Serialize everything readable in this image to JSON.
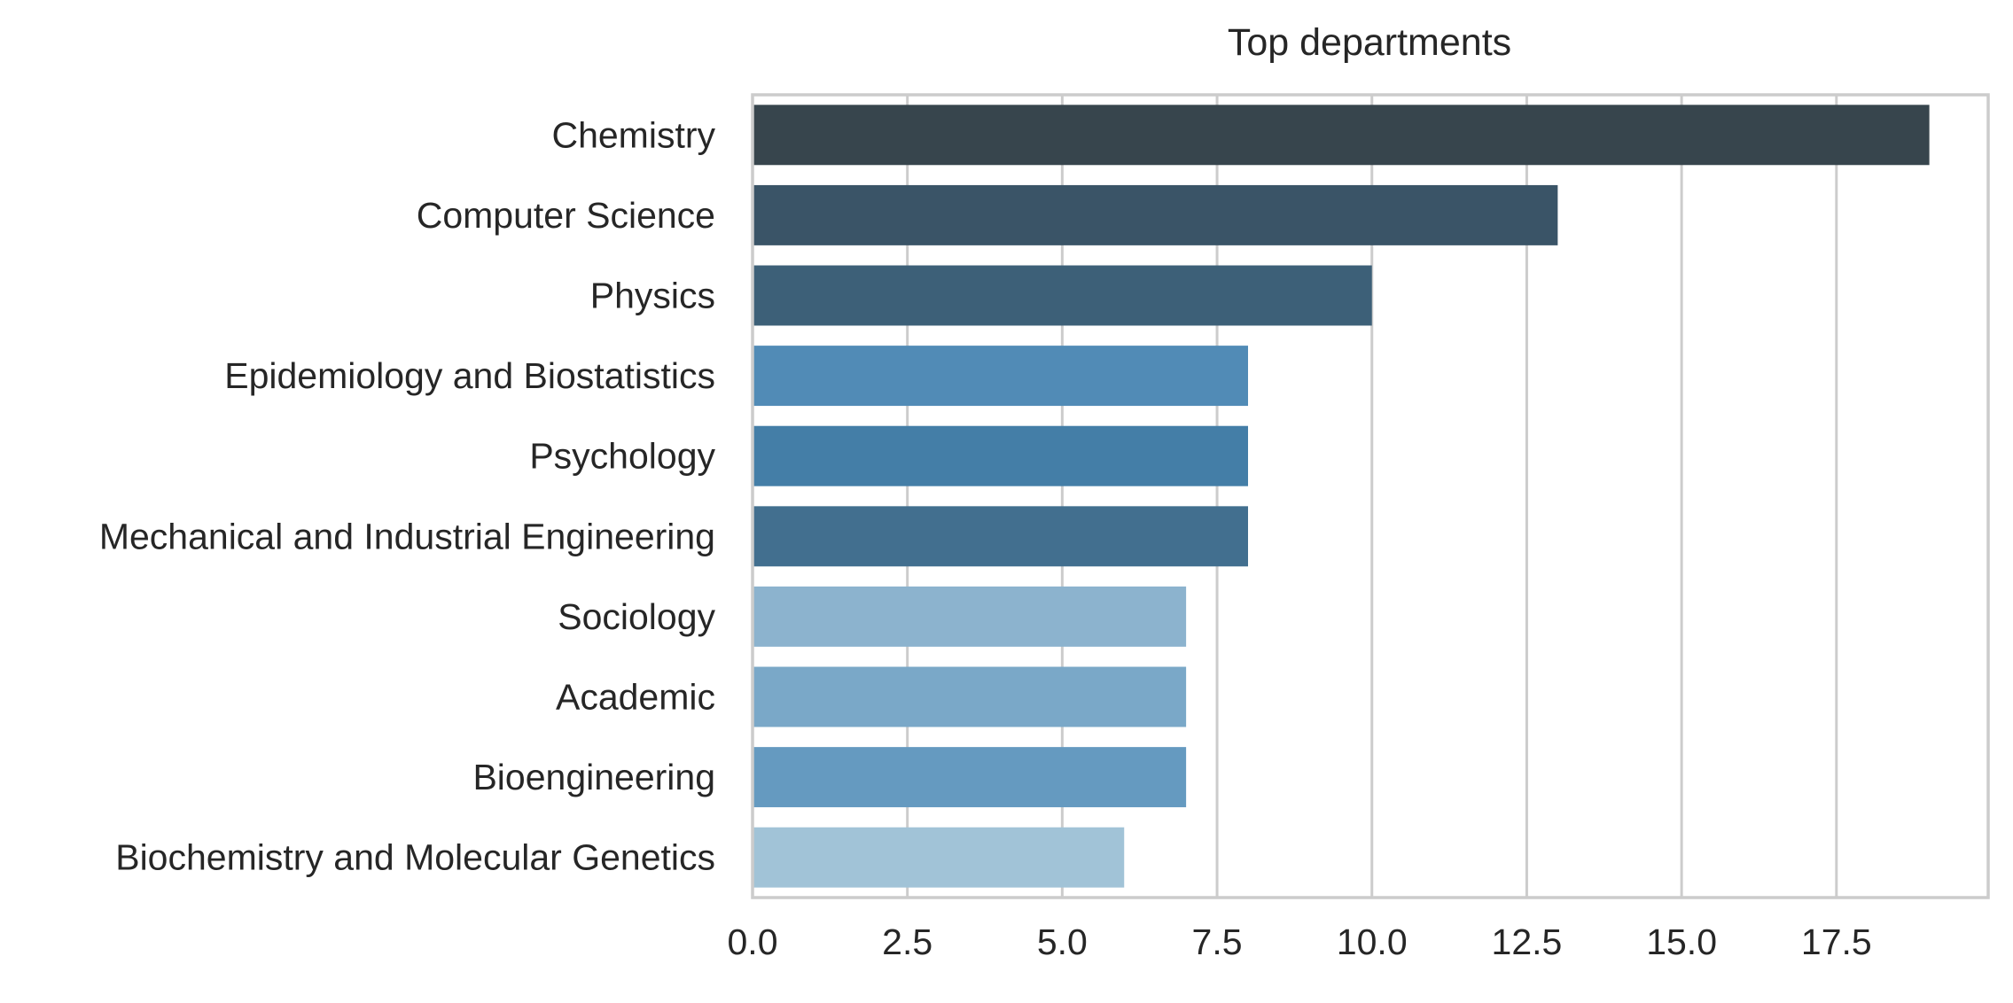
{
  "chart_data": {
    "type": "bar",
    "orientation": "horizontal",
    "title": "Top departments",
    "xlabel": "",
    "ylabel": "",
    "categories": [
      "Chemistry",
      "Computer Science",
      "Physics",
      "Epidemiology and Biostatistics",
      "Psychology",
      "Mechanical and Industrial Engineering",
      "Sociology",
      "Academic",
      "Bioengineering",
      "Biochemistry and Molecular Genetics"
    ],
    "values": [
      19,
      13,
      10,
      8,
      8,
      8,
      7,
      7,
      7,
      6
    ],
    "colors": [
      "#37454d",
      "#3a5467",
      "#3d6078",
      "#518bb6",
      "#447ea7",
      "#426f8f",
      "#8cb3ce",
      "#7aa8c8",
      "#659ac0",
      "#a1c3d7"
    ],
    "xlim": [
      0,
      19.95
    ],
    "xticks": [
      0.0,
      2.5,
      5.0,
      7.5,
      10.0,
      12.5,
      15.0,
      17.5
    ],
    "xtick_labels": [
      "0.0",
      "2.5",
      "5.0",
      "7.5",
      "10.0",
      "12.5",
      "15.0",
      "17.5"
    ],
    "grid": "x",
    "legend": "none"
  }
}
